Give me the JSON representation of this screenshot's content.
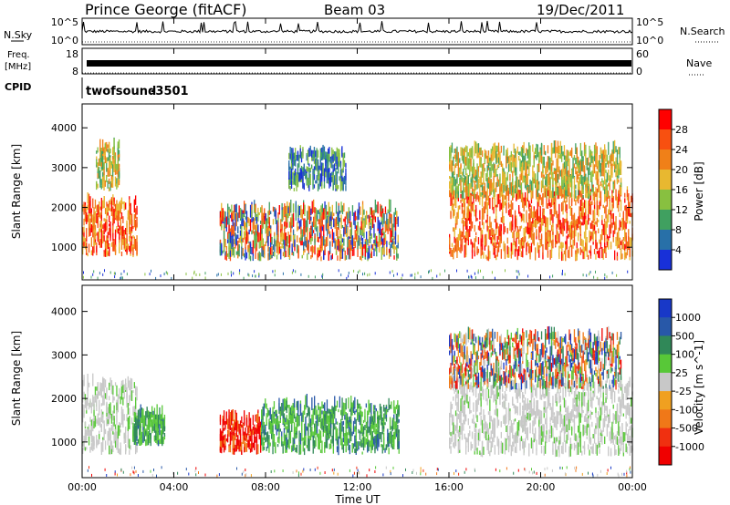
{
  "header": {
    "station": "Prince George (fitACF)",
    "beam": "Beam 03",
    "date": "19/Dec/2011"
  },
  "panels": {
    "nsky": {
      "label": "N.Sky",
      "ticks": [
        "10^5",
        "10^0"
      ],
      "right_ticks": [
        "10^5",
        "10^0"
      ],
      "right_label": "N.Search"
    },
    "freq": {
      "label_line1": "Freq.",
      "label_line2": "[MHz]",
      "ticks": [
        "18",
        "8"
      ],
      "right_ticks": [
        "60",
        "0"
      ],
      "right_label": "Nave"
    },
    "cpid": {
      "label": "CPID",
      "program": "twofsound",
      "id": "-3501"
    }
  },
  "time_axis": {
    "ticks": [
      "00:00",
      "04:00",
      "08:00",
      "12:00",
      "16:00",
      "20:00",
      "00:00"
    ],
    "label": "Time UT"
  },
  "chart_data": [
    {
      "type": "heatmap",
      "name": "power",
      "ylabel": "Slant Range [km]",
      "yticks": [
        1000,
        2000,
        3000,
        4000
      ],
      "ylim": [
        180,
        4600
      ],
      "xlim_hours": [
        0,
        24
      ],
      "colorbar": {
        "label": "Power [dB]",
        "ticks": [
          "28",
          "24",
          "20",
          "16",
          "12",
          "8",
          "4"
        ],
        "colors": [
          "#ff0000",
          "#f85010",
          "#f08018",
          "#e8b830",
          "#88c040",
          "#40a060",
          "#2870a8",
          "#1830d8"
        ]
      },
      "echo_regions": [
        {
          "t": [
            0.0,
            2.4
          ],
          "r": [
            750,
            2100
          ],
          "level": "high"
        },
        {
          "t": [
            0.6,
            1.6
          ],
          "r": [
            2400,
            3500
          ],
          "level": "mid"
        },
        {
          "t": [
            6.0,
            13.8
          ],
          "r": [
            650,
            1900
          ],
          "level": "mixed"
        },
        {
          "t": [
            9.0,
            11.5
          ],
          "r": [
            2400,
            3300
          ],
          "level": "low"
        },
        {
          "t": [
            16.0,
            24.0
          ],
          "r": [
            650,
            2300
          ],
          "level": "high"
        },
        {
          "t": [
            16.0,
            23.5
          ],
          "r": [
            2200,
            3400
          ],
          "level": "mid"
        }
      ]
    },
    {
      "type": "heatmap",
      "name": "velocity",
      "ylabel": "Slant Range [km]",
      "yticks": [
        1000,
        2000,
        3000,
        4000
      ],
      "ylim": [
        180,
        4600
      ],
      "xlim_hours": [
        0,
        24
      ],
      "colorbar": {
        "label": "Velocity [m s^-1]",
        "ticks": [
          "1000",
          "500",
          "100",
          "25",
          "-25",
          "-100",
          "-500",
          "-1000"
        ],
        "colors": [
          "#1838c8",
          "#2858a8",
          "#308858",
          "#58c838",
          "#c8c8c8",
          "#f0a020",
          "#f07818",
          "#f03010",
          "#f00000"
        ]
      },
      "echo_regions": [
        {
          "t": [
            0.0,
            2.4
          ],
          "r": [
            700,
            2300
          ],
          "v": "ground"
        },
        {
          "t": [
            2.2,
            3.6
          ],
          "r": [
            900,
            1600
          ],
          "v": "positive"
        },
        {
          "t": [
            6.0,
            7.8
          ],
          "r": [
            700,
            1500
          ],
          "v": "strong-negative"
        },
        {
          "t": [
            7.8,
            13.8
          ],
          "r": [
            700,
            1800
          ],
          "v": "positive"
        },
        {
          "t": [
            16.0,
            24.0
          ],
          "r": [
            650,
            2300
          ],
          "v": "ground"
        },
        {
          "t": [
            16.0,
            23.5
          ],
          "r": [
            2200,
            3400
          ],
          "v": "mixed"
        }
      ]
    }
  ]
}
